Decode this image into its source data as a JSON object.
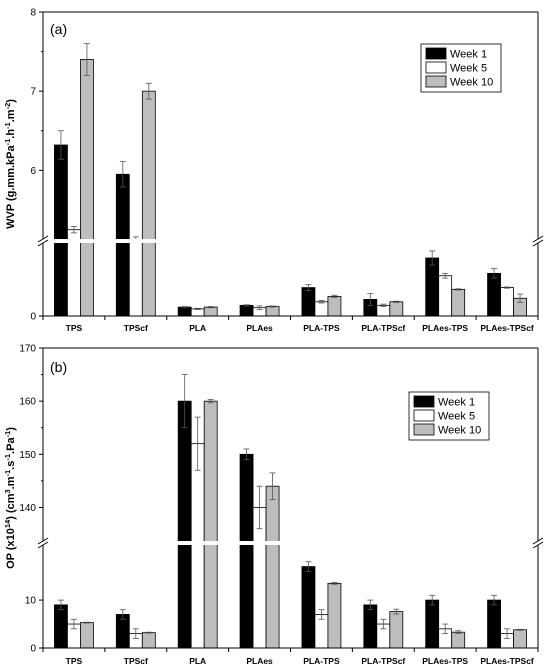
{
  "chart_data": [
    {
      "type": "bar",
      "panel_label": "(a)",
      "ylabel_main": "WVP (g.mm.kPa",
      "ylabel_unit_parts": [
        "-1",
        ".h",
        "-1",
        ".m",
        "-2",
        ")"
      ],
      "categories": [
        "TPS",
        "TPScf",
        "PLA",
        "PLAes",
        "PLA-TPS",
        "PLA-TPScf",
        "PLAes-TPS",
        "PLAes-TPScf"
      ],
      "series": [
        {
          "name": "Week 1",
          "color": "#000000",
          "values": [
            6.32,
            5.95,
            0.15,
            0.18,
            0.48,
            0.28,
            0.98,
            0.72
          ],
          "errors": [
            0.18,
            0.16,
            0.01,
            0.01,
            0.05,
            0.1,
            0.12,
            0.08
          ]
        },
        {
          "name": "Week 5",
          "color": "#ffffff",
          "values": [
            5.25,
            5.1,
            0.12,
            0.14,
            0.24,
            0.18,
            0.68,
            0.48
          ],
          "errors": [
            0.04,
            0.06,
            0.01,
            0.03,
            0.02,
            0.02,
            0.04,
            0.01
          ]
        },
        {
          "name": "Week 10",
          "color": "#bdbdbd",
          "values": [
            7.4,
            7.0,
            0.15,
            0.16,
            0.33,
            0.24,
            0.45,
            0.3
          ],
          "errors": [
            0.2,
            0.1,
            0.01,
            0.01,
            0.02,
            0.01,
            0.01,
            0.07
          ]
        }
      ],
      "lower_axis": {
        "ticks": [
          0
        ]
      },
      "upper_axis": {
        "ticks": [
          6,
          7,
          8
        ]
      },
      "legend_position": "top-right"
    },
    {
      "type": "bar",
      "panel_label": "(b)",
      "ylabel_main": "OP (x10",
      "ylabel_unit_parts": [
        "14",
        ") (cm",
        "3",
        ".m",
        "-1",
        ".s",
        "-1",
        ".Pa",
        "-1",
        ")"
      ],
      "categories": [
        "TPS",
        "TPScf",
        "PLA",
        "PLAes",
        "PLA-TPS",
        "PLA-TPScf",
        "PLAes-TPS",
        "PLAes-TPScf"
      ],
      "series": [
        {
          "name": "Week 1",
          "color": "#000000",
          "values": [
            9,
            7,
            160,
            150,
            17,
            9,
            10,
            10
          ],
          "errors": [
            1,
            1,
            5,
            1,
            1,
            1,
            1,
            1
          ]
        },
        {
          "name": "Week 5",
          "color": "#ffffff",
          "values": [
            5,
            3,
            152,
            140,
            7,
            5,
            4,
            3
          ],
          "errors": [
            1,
            1,
            5,
            4,
            1,
            1,
            1,
            1
          ]
        },
        {
          "name": "Week 10",
          "color": "#bdbdbd",
          "values": [
            5.3,
            3.2,
            160,
            144,
            13.5,
            7.6,
            3.3,
            3.8
          ],
          "errors": [
            0.1,
            0.1,
            0.3,
            2.5,
            0.2,
            0.5,
            0.3,
            0.1
          ]
        }
      ],
      "lower_axis": {
        "ticks": [
          0,
          10
        ]
      },
      "upper_axis": {
        "ticks": [
          140,
          150,
          160,
          170
        ]
      },
      "legend_position": "top-right"
    }
  ]
}
